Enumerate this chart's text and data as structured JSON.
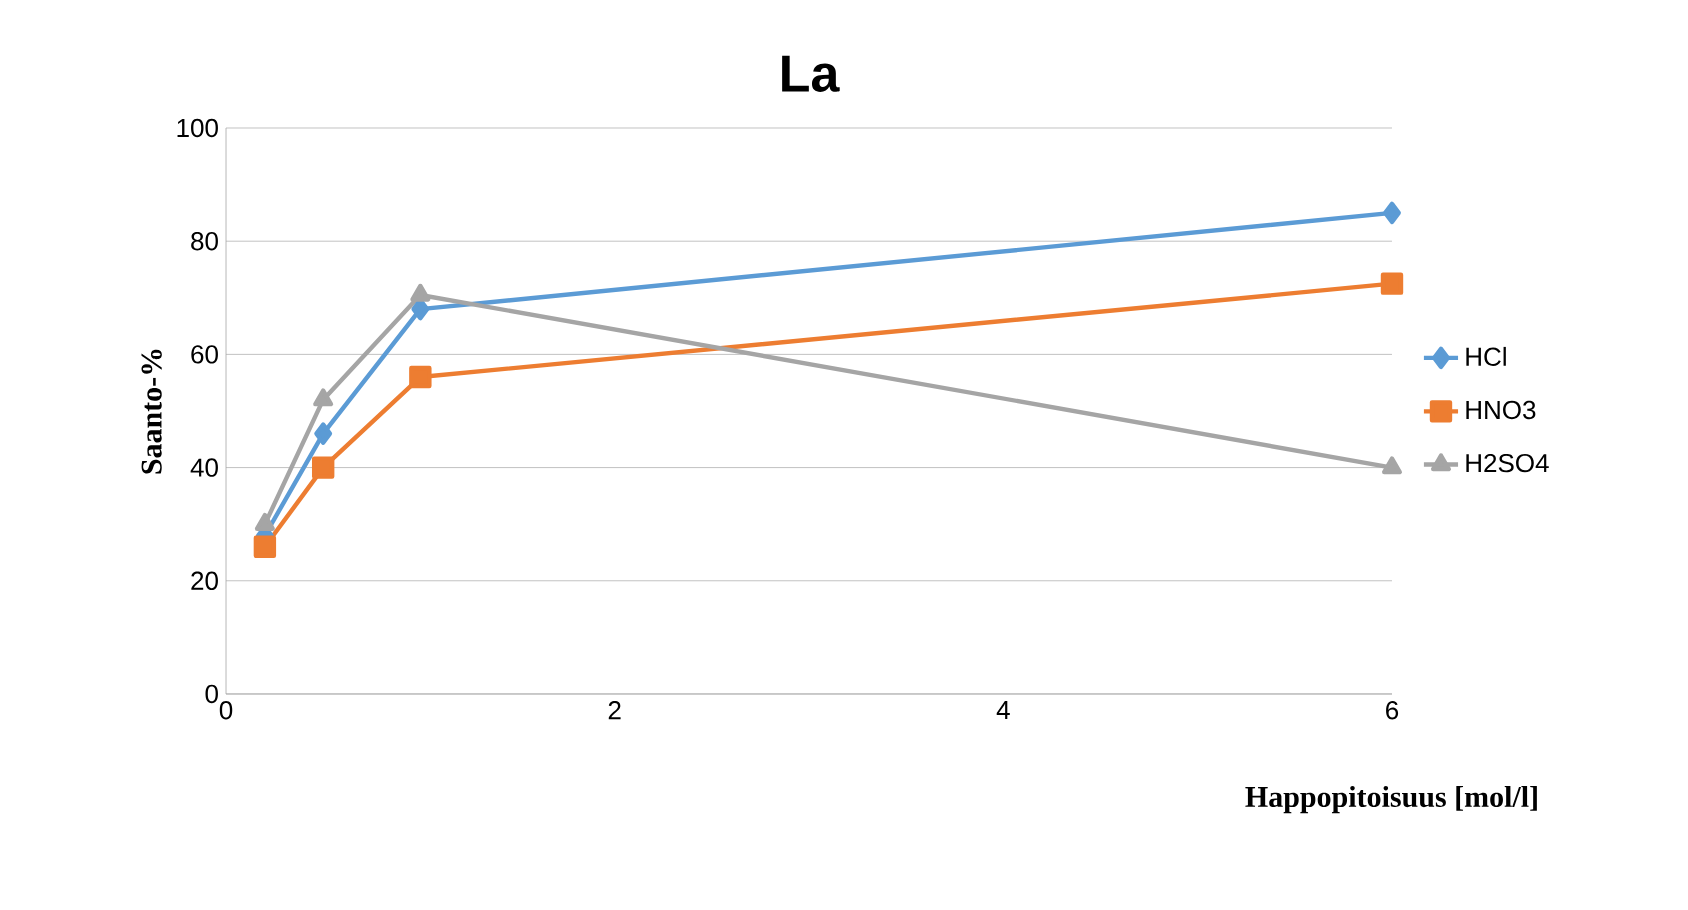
{
  "chart_data": {
    "type": "line",
    "title": "La",
    "xlabel": "Happopitoisuus [mol/l]",
    "ylabel": "Saanto-%",
    "x": [
      0.2,
      0.5,
      1,
      6
    ],
    "series": [
      {
        "name": "HCl",
        "color": "#5b9bd5",
        "marker": "diamond",
        "values": [
          28,
          46,
          68,
          85
        ]
      },
      {
        "name": "HNO3",
        "color": "#ed7d31",
        "marker": "square",
        "values": [
          26,
          40,
          56,
          72.5
        ]
      },
      {
        "name": "H2SO4",
        "color": "#a5a5a5",
        "marker": "triangle",
        "values": [
          30,
          52,
          70.5,
          40
        ]
      }
    ],
    "xlim": [
      0,
      6
    ],
    "xticks": [
      0,
      2,
      4,
      6
    ],
    "ylim": [
      0,
      100
    ],
    "yticks": [
      0,
      20,
      40,
      60,
      80,
      100
    ],
    "grid": "y",
    "legend": "right",
    "line_style": "solid"
  }
}
